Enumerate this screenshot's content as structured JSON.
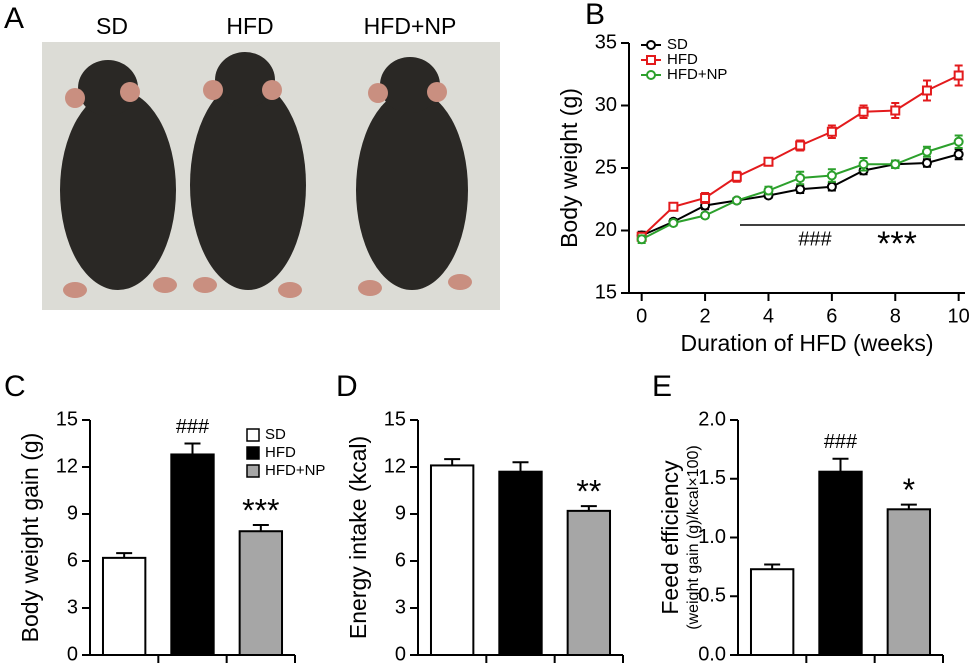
{
  "panel_a": {
    "panel": "A",
    "labels": [
      "SD",
      "HFD",
      "HFD+NP"
    ]
  },
  "chart_data": [
    {
      "type": "line",
      "panel": "B",
      "xlabel": "Duration of HFD (weeks)",
      "ylabel": "Body weight (g)",
      "x": [
        0,
        1,
        2,
        3,
        4,
        5,
        6,
        7,
        8,
        9,
        10
      ],
      "series": [
        {
          "name": "SD",
          "color": "#000000",
          "marker": "circle",
          "values": [
            19.6,
            20.7,
            22.0,
            22.4,
            22.8,
            23.3,
            23.5,
            24.8,
            25.3,
            25.4,
            26.1
          ],
          "errors": [
            0.3,
            0.2,
            0.3,
            0.2,
            0.2,
            0.3,
            0.3,
            0.3,
            0.3,
            0.3,
            0.4
          ]
        },
        {
          "name": "HFD",
          "color": "#e31a1c",
          "marker": "square",
          "values": [
            19.5,
            21.9,
            22.6,
            24.3,
            25.5,
            26.8,
            27.9,
            29.5,
            29.6,
            31.2,
            32.4
          ],
          "errors": [
            0.3,
            0.3,
            0.4,
            0.4,
            0.3,
            0.4,
            0.5,
            0.5,
            0.6,
            0.8,
            0.8
          ]
        },
        {
          "name": "HFD+NP",
          "color": "#2ca02c",
          "marker": "circle",
          "values": [
            19.3,
            20.6,
            21.2,
            22.4,
            23.2,
            24.2,
            24.4,
            25.3,
            25.3,
            26.3,
            27.1
          ],
          "errors": [
            0.3,
            0.2,
            0.2,
            0.2,
            0.3,
            0.5,
            0.5,
            0.5,
            0.3,
            0.4,
            0.5
          ]
        }
      ],
      "annotations": [
        "###",
        "***"
      ],
      "xlim": [
        -0.4,
        10.2
      ],
      "xticks": [
        0,
        2,
        4,
        6,
        8,
        10
      ],
      "ylim": [
        15,
        35
      ],
      "yticks": [
        15,
        20,
        25,
        30,
        35
      ]
    },
    {
      "type": "bar",
      "panel": "C",
      "ylabel": "Body weight gain (g)",
      "categories": [
        "SD",
        "HFD",
        "HFD+NP"
      ],
      "colors": [
        "#ffffff",
        "#000000",
        "#a6a6a6"
      ],
      "values": [
        6.2,
        12.8,
        7.9
      ],
      "errors": [
        0.3,
        0.7,
        0.4
      ],
      "annotations": [
        null,
        "###",
        "***"
      ],
      "ylim": [
        0,
        15
      ],
      "yticks": [
        0,
        3,
        6,
        9,
        12,
        15
      ],
      "legend": "top-right"
    },
    {
      "type": "bar",
      "panel": "D",
      "ylabel": "Energy intake (kcal)",
      "colors": [
        "#ffffff",
        "#000000",
        "#a6a6a6"
      ],
      "values": [
        12.1,
        11.7,
        9.2
      ],
      "errors": [
        0.4,
        0.6,
        0.3
      ],
      "annotations": [
        null,
        null,
        "**"
      ],
      "ylim": [
        0,
        15
      ],
      "yticks": [
        0,
        3,
        6,
        9,
        12,
        15
      ]
    },
    {
      "type": "bar",
      "panel": "E",
      "ylabel": "Feed efficiency",
      "ylabel_sub": "(weight gain (g)/kcal×100)",
      "colors": [
        "#ffffff",
        "#000000",
        "#a6a6a6"
      ],
      "values": [
        0.73,
        1.56,
        1.24
      ],
      "errors": [
        0.04,
        0.11,
        0.04
      ],
      "annotations": [
        null,
        "###",
        "*"
      ],
      "ylim": [
        0,
        2
      ],
      "yticks": [
        {
          "value": 0,
          "label": "0.0"
        },
        {
          "value": 0.5,
          "label": "0.5"
        },
        {
          "value": 1,
          "label": "1.0"
        },
        {
          "value": 1.5,
          "label": "1.5"
        },
        {
          "value": 2,
          "label": "2.0"
        }
      ]
    }
  ]
}
